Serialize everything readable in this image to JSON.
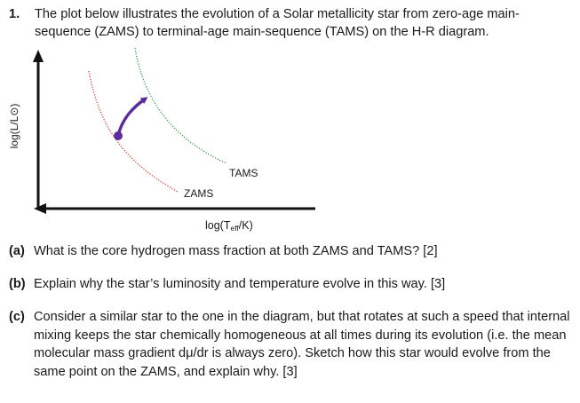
{
  "question": {
    "number": "1.",
    "text": "The plot below illustrates the evolution of a Solar metallicity star from zero-age main-sequence (ZAMS) to terminal-age main-sequence (TAMS) on the H-R diagram."
  },
  "diagram": {
    "y_label": "log(L/L⊙)",
    "x_label_main": "log(T",
    "x_label_sub": "eff",
    "x_label_end": "/K)",
    "zams_label": "ZAMS",
    "tams_label": "TAMS",
    "colors": {
      "zams": "#e0382d",
      "tams": "#2a9d3a",
      "track": "#5a2d9c",
      "axis": "#111111"
    }
  },
  "parts": [
    {
      "label": "(a)",
      "text": "What is the core hydrogen mass fraction at both ZAMS and TAMS? [2]"
    },
    {
      "label": "(b)",
      "text": "Explain why the star’s luminosity and temperature evolve in this way. [3]"
    },
    {
      "label": "(c)",
      "text": "Consider a similar star to the one in the diagram, but that rotates at such a speed that internal mixing keeps the star chemically homogeneous at all times during its evolution (i.e. the mean molecular mass gradient dμ/dr is always zero). Sketch how this star would evolve from the same point on the ZAMS, and explain why. [3]"
    }
  ]
}
